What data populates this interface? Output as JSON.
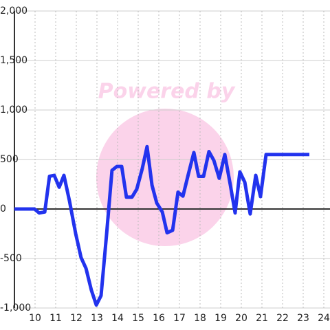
{
  "chart_data": {
    "type": "line",
    "watermark": "Powered by",
    "x": [
      9.0,
      9.97,
      10.2,
      10.47,
      10.7,
      10.93,
      11.17,
      11.4,
      11.67,
      11.97,
      12.23,
      12.47,
      12.73,
      12.97,
      13.2,
      13.47,
      13.73,
      13.97,
      14.2,
      14.43,
      14.7,
      14.93,
      15.2,
      15.43,
      15.67,
      15.9,
      16.17,
      16.4,
      16.67,
      16.93,
      17.17,
      17.43,
      17.7,
      17.93,
      18.17,
      18.43,
      18.67,
      18.93,
      19.2,
      19.47,
      19.7,
      19.93,
      20.17,
      20.43,
      20.7,
      20.93,
      21.2,
      21.43,
      23.3
    ],
    "series": [
      {
        "color": "#2233ee",
        "values": [
          0,
          0,
          -40,
          -30,
          330,
          340,
          220,
          340,
          80,
          -250,
          -490,
          -600,
          -820,
          -970,
          -875,
          -250,
          390,
          430,
          430,
          120,
          120,
          200,
          410,
          630,
          240,
          60,
          -30,
          -240,
          -215,
          170,
          130,
          350,
          570,
          330,
          330,
          580,
          490,
          310,
          550,
          240,
          -40,
          375,
          270,
          -50,
          340,
          125,
          550,
          550,
          550
        ]
      }
    ],
    "xlim": [
      9,
      24.3
    ],
    "xticks": [
      10,
      11,
      12,
      13,
      14,
      15,
      16,
      17,
      18,
      19,
      20,
      21,
      22,
      23,
      24
    ],
    "ylim": [
      -1000,
      2000
    ],
    "yticks": [
      {
        "value": -1000,
        "label": "-1,000"
      },
      -500,
      0,
      500,
      {
        "value": 1000,
        "label": "1,000"
      },
      {
        "value": 1500,
        "label": "1,500"
      },
      {
        "value": 2000,
        "label": "2,000"
      }
    ],
    "grid": true
  }
}
